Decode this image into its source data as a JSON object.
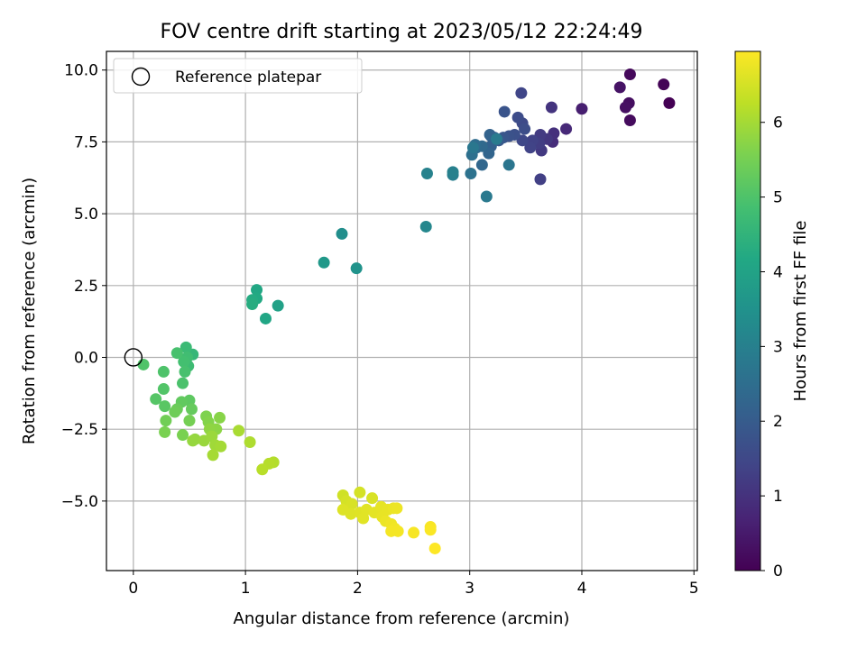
{
  "chart_data": {
    "type": "scatter",
    "title": "FOV centre drift starting at 2023/05/12 22:24:49",
    "xlabel": "Angular distance from reference (arcmin)",
    "ylabel": "Rotation from reference (arcmin)",
    "xlim": [
      -0.24,
      5.03
    ],
    "ylim": [
      -7.42,
      10.65
    ],
    "xticks": [
      0,
      1,
      2,
      3,
      4,
      5
    ],
    "xtick_labels": [
      "0",
      "1",
      "2",
      "3",
      "4",
      "5"
    ],
    "yticks": [
      -5.0,
      -2.5,
      0.0,
      2.5,
      5.0,
      7.5,
      10.0
    ],
    "ytick_labels": [
      "−5.0",
      "−2.5",
      "0.0",
      "2.5",
      "5.0",
      "7.5",
      "10.0"
    ],
    "grid": true,
    "legend": {
      "placement": "top-left",
      "entries": [
        "Reference platepar"
      ]
    },
    "reference_point": {
      "x": 0,
      "y": 0
    },
    "colorbar": {
      "label": "Hours from first FF file",
      "colormap": "viridis",
      "range": [
        0,
        6.95
      ],
      "ticks": [
        0,
        1,
        2,
        3,
        4,
        5,
        6
      ],
      "tick_labels": [
        "0",
        "1",
        "2",
        "3",
        "4",
        "5",
        "6"
      ]
    },
    "points": [
      [
        4.78,
        8.85,
        0.0
      ],
      [
        4.73,
        9.5,
        0.05
      ],
      [
        4.43,
        9.85,
        0.15
      ],
      [
        4.43,
        8.25,
        0.2
      ],
      [
        4.42,
        8.85,
        0.25
      ],
      [
        4.39,
        8.7,
        0.3
      ],
      [
        4.34,
        9.4,
        0.35
      ],
      [
        4.0,
        8.65,
        0.6
      ],
      [
        3.86,
        7.95,
        0.8
      ],
      [
        3.74,
        7.5,
        0.9
      ],
      [
        3.75,
        7.8,
        0.95
      ],
      [
        3.73,
        8.7,
        1.05
      ],
      [
        3.69,
        7.6,
        1.1
      ],
      [
        3.64,
        7.2,
        1.15
      ],
      [
        3.63,
        7.75,
        1.2
      ],
      [
        3.62,
        7.45,
        1.25
      ],
      [
        3.63,
        6.2,
        1.3
      ],
      [
        3.56,
        7.55,
        1.35
      ],
      [
        3.54,
        7.3,
        1.4
      ],
      [
        3.46,
        9.2,
        1.45
      ],
      [
        3.47,
        7.55,
        1.5
      ],
      [
        3.47,
        8.15,
        1.55
      ],
      [
        3.43,
        8.35,
        1.6
      ],
      [
        3.49,
        7.95,
        1.65
      ],
      [
        3.4,
        7.75,
        1.7
      ],
      [
        3.35,
        7.7,
        1.75
      ],
      [
        3.31,
        8.55,
        1.8
      ],
      [
        3.3,
        7.65,
        1.85
      ],
      [
        3.26,
        7.55,
        1.95
      ],
      [
        3.22,
        7.65,
        2.0
      ],
      [
        3.19,
        7.7,
        2.1
      ],
      [
        3.19,
        7.35,
        2.15
      ],
      [
        3.18,
        7.75,
        2.2
      ],
      [
        3.17,
        7.1,
        2.25
      ],
      [
        3.11,
        6.7,
        2.3
      ],
      [
        3.11,
        7.35,
        2.35
      ],
      [
        3.06,
        7.3,
        2.4
      ],
      [
        3.05,
        7.4,
        2.45
      ],
      [
        3.02,
        7.05,
        2.55
      ],
      [
        3.01,
        6.4,
        2.6
      ],
      [
        3.35,
        6.7,
        2.7
      ],
      [
        3.03,
        7.3,
        2.75
      ],
      [
        3.15,
        5.6,
        2.8
      ],
      [
        3.24,
        7.6,
        2.85
      ],
      [
        2.85,
        6.35,
        2.95
      ],
      [
        2.85,
        6.45,
        3.0
      ],
      [
        2.62,
        6.4,
        3.05
      ],
      [
        2.61,
        4.55,
        3.2
      ],
      [
        1.86,
        4.3,
        3.4
      ],
      [
        1.99,
        3.1,
        3.55
      ],
      [
        1.7,
        3.3,
        3.7
      ],
      [
        1.29,
        1.8,
        3.95
      ],
      [
        1.18,
        1.35,
        4.1
      ],
      [
        1.1,
        2.35,
        4.15
      ],
      [
        1.1,
        2.05,
        4.2
      ],
      [
        1.06,
        2.0,
        4.25
      ],
      [
        1.06,
        1.85,
        4.3
      ],
      [
        0.53,
        0.1,
        4.6
      ],
      [
        0.47,
        0.35,
        4.7
      ],
      [
        0.49,
        -0.3,
        4.75
      ],
      [
        0.48,
        0.0,
        4.8
      ],
      [
        0.45,
        -0.15,
        4.85
      ],
      [
        0.46,
        -0.5,
        4.9
      ],
      [
        0.39,
        0.15,
        4.92
      ],
      [
        0.44,
        -0.9,
        4.95
      ],
      [
        0.27,
        -0.5,
        5.0
      ],
      [
        0.09,
        -0.25,
        5.02
      ],
      [
        0.27,
        -1.1,
        5.05
      ],
      [
        0.2,
        -1.45,
        5.1
      ],
      [
        0.28,
        -1.7,
        5.15
      ],
      [
        0.5,
        -1.5,
        5.2
      ],
      [
        0.43,
        -1.55,
        5.25
      ],
      [
        0.52,
        -1.8,
        5.3
      ],
      [
        0.39,
        -1.8,
        5.35
      ],
      [
        0.37,
        -1.9,
        5.4
      ],
      [
        0.29,
        -2.2,
        5.45
      ],
      [
        0.5,
        -2.2,
        5.5
      ],
      [
        0.28,
        -2.6,
        5.55
      ],
      [
        0.44,
        -2.7,
        5.55
      ],
      [
        0.65,
        -2.05,
        5.6
      ],
      [
        0.67,
        -2.25,
        5.65
      ],
      [
        0.77,
        -2.1,
        5.7
      ],
      [
        0.74,
        -2.5,
        5.75
      ],
      [
        0.68,
        -2.5,
        5.78
      ],
      [
        0.55,
        -2.85,
        5.82
      ],
      [
        0.53,
        -2.9,
        5.85
      ],
      [
        0.63,
        -2.9,
        5.88
      ],
      [
        0.7,
        -2.75,
        5.9
      ],
      [
        0.73,
        -3.05,
        5.95
      ],
      [
        0.78,
        -3.1,
        6.0
      ],
      [
        0.71,
        -3.4,
        6.02
      ],
      [
        0.94,
        -2.55,
        6.05
      ],
      [
        1.04,
        -2.95,
        6.1
      ],
      [
        1.25,
        -3.65,
        6.15
      ],
      [
        1.21,
        -3.7,
        6.18
      ],
      [
        1.15,
        -3.9,
        6.2
      ],
      [
        1.87,
        -4.8,
        6.45
      ],
      [
        2.02,
        -4.7,
        6.5
      ],
      [
        1.9,
        -5.0,
        6.5
      ],
      [
        2.13,
        -4.9,
        6.55
      ],
      [
        1.95,
        -5.1,
        6.55
      ],
      [
        1.87,
        -5.3,
        6.6
      ],
      [
        1.94,
        -5.45,
        6.6
      ],
      [
        2.02,
        -5.4,
        6.62
      ],
      [
        2.05,
        -5.6,
        6.65
      ],
      [
        2.08,
        -5.3,
        6.65
      ],
      [
        2.15,
        -5.4,
        6.68
      ],
      [
        2.21,
        -5.2,
        6.7
      ],
      [
        2.22,
        -5.55,
        6.72
      ],
      [
        2.27,
        -5.3,
        6.72
      ],
      [
        2.25,
        -5.7,
        6.75
      ],
      [
        2.32,
        -5.25,
        6.75
      ],
      [
        2.35,
        -5.25,
        6.78
      ],
      [
        2.3,
        -5.8,
        6.8
      ],
      [
        2.33,
        -5.95,
        6.82
      ],
      [
        2.3,
        -6.05,
        6.85
      ],
      [
        2.36,
        -6.05,
        6.85
      ],
      [
        2.5,
        -6.1,
        6.88
      ],
      [
        2.65,
        -5.9,
        6.9
      ],
      [
        2.65,
        -6.0,
        6.92
      ],
      [
        2.69,
        -6.65,
        6.95
      ]
    ]
  }
}
